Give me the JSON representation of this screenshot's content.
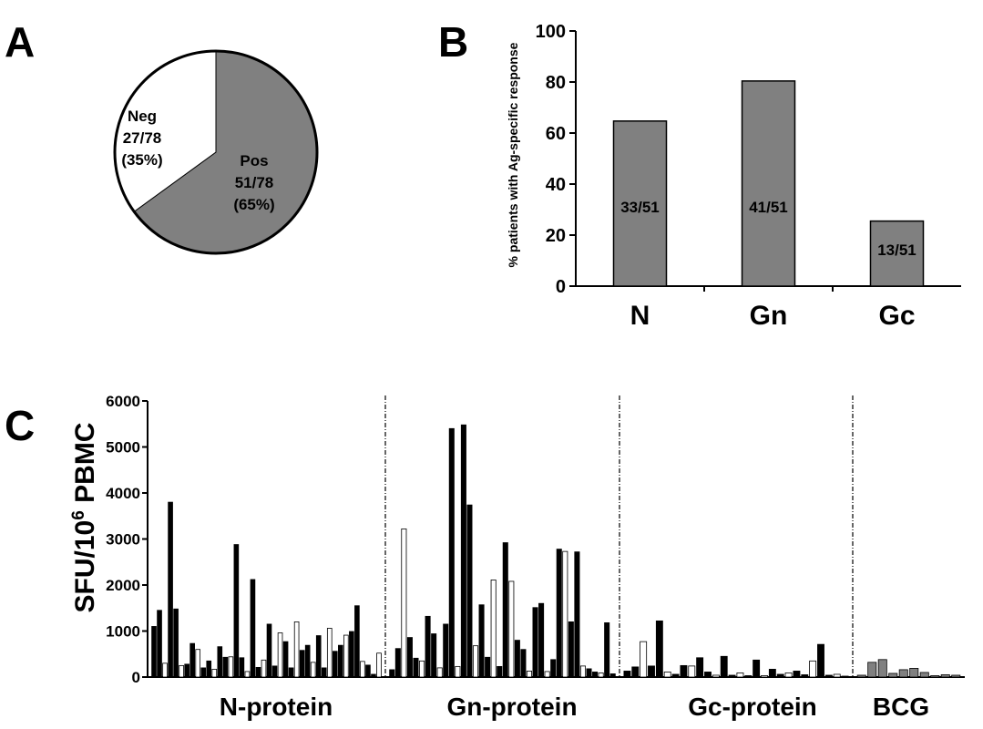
{
  "panels": {
    "a": "A",
    "b": "B",
    "c": "C"
  },
  "colors": {
    "bar_gray": "#808080",
    "black": "#000000",
    "white": "#ffffff"
  },
  "chart_data": [
    {
      "type": "pie",
      "panel": "A",
      "slices": [
        {
          "name": "Pos",
          "count": "51/78",
          "percent": "(65%)",
          "value": 65,
          "color": "#808080"
        },
        {
          "name": "Neg",
          "count": "27/78",
          "percent": "(35%)",
          "value": 35,
          "color": "#ffffff"
        }
      ]
    },
    {
      "type": "bar",
      "panel": "B",
      "ylabel": "% patients with Ag-specific response",
      "ylim": [
        0,
        100
      ],
      "yticks": [
        "0",
        "20",
        "40",
        "60",
        "80",
        "100"
      ],
      "categories": [
        "N",
        "Gn",
        "Gc"
      ],
      "values": [
        64.7,
        80.4,
        25.5
      ],
      "data_labels": [
        "33/51",
        "41/51",
        "13/51"
      ],
      "color": "#808080"
    },
    {
      "type": "bar",
      "panel": "C",
      "ylabel_main": "SFU/10",
      "ylabel_sup": "6",
      "ylabel_tail": " PBMC",
      "ylim": [
        0,
        6000
      ],
      "yticks": [
        "0",
        "1000",
        "2000",
        "3000",
        "4000",
        "5000",
        "6000"
      ],
      "groups": [
        {
          "name": "N-protein",
          "style": "bw",
          "values": [
            1100,
            1450,
            300,
            3800,
            1480,
            250,
            280,
            730,
            600,
            200,
            350,
            170,
            660,
            430,
            440,
            2880,
            420,
            120,
            2120,
            210,
            370,
            1150,
            240,
            960,
            770,
            200,
            1200,
            580,
            690,
            320,
            900,
            200,
            1060,
            560,
            690,
            910,
            990,
            1550,
            340,
            260,
            60,
            520
          ]
        },
        {
          "name": "Gn-protein",
          "style": "bw",
          "values": [
            160,
            620,
            3220,
            860,
            410,
            350,
            1320,
            940,
            200,
            1150,
            5400,
            230,
            5480,
            3740,
            680,
            1570,
            430,
            2110,
            230,
            2920,
            2080,
            800,
            600,
            130,
            1510,
            1600,
            120,
            380,
            2780,
            2730,
            1200,
            2720,
            240,
            180,
            110,
            90,
            1180,
            70
          ]
        },
        {
          "name": "Gc-protein",
          "style": "bw",
          "values": [
            130,
            220,
            770,
            240,
            1220,
            110,
            60,
            250,
            240,
            420,
            110,
            40,
            450,
            40,
            90,
            30,
            370,
            30,
            170,
            60,
            90,
            130,
            50,
            350,
            710,
            40,
            60,
            20
          ]
        },
        {
          "name": "BCG",
          "style": "gray",
          "values": [
            40,
            320,
            380,
            80,
            160,
            190,
            100,
            30,
            50,
            40
          ]
        }
      ]
    }
  ]
}
